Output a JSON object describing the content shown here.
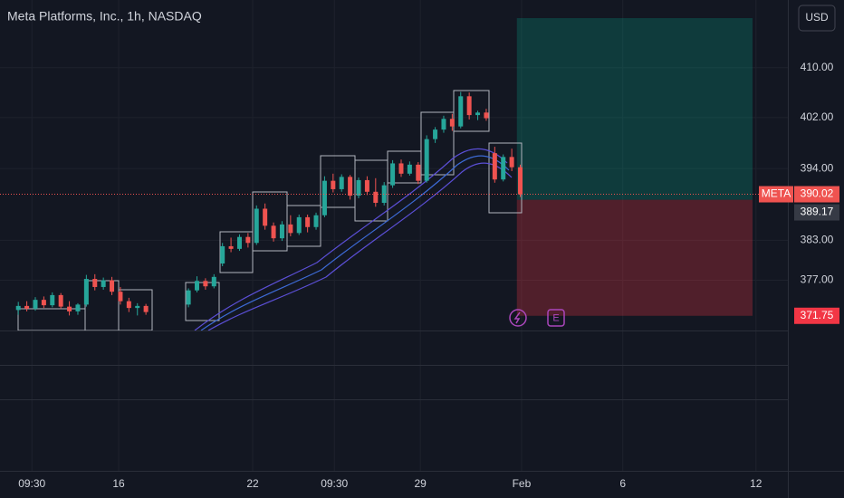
{
  "chart_data": {
    "type": "candlestick",
    "title": "Meta Platforms, Inc., 1h, NASDAQ",
    "currency": "USD",
    "symbol": "META",
    "earnings_marker": "E",
    "log_scale": true,
    "grid": true,
    "up_color": "#26a69a",
    "down_color": "#ef5350",
    "ylim": [
      369.6,
      421.1
    ],
    "yticks": [
      {
        "value": 410,
        "label": "410.00"
      },
      {
        "value": 402,
        "label": "402.00"
      },
      {
        "value": 394,
        "label": "394.00"
      },
      {
        "value": 383,
        "label": "383.00"
      },
      {
        "value": 377,
        "label": "377.00"
      }
    ],
    "xlim": [
      -4.3,
      180.9
    ],
    "xticks": [
      {
        "value": 3.2,
        "label": "09:30"
      },
      {
        "value": 23.6,
        "label": "16"
      },
      {
        "value": 55.1,
        "label": "22"
      },
      {
        "value": 74.3,
        "label": "09:30"
      },
      {
        "value": 94.5,
        "label": "29"
      },
      {
        "value": 118.3,
        "label": "Feb"
      },
      {
        "value": 142.1,
        "label": "6"
      },
      {
        "value": 173.4,
        "label": "12"
      }
    ],
    "candles": [
      [
        0,
        372.6,
        373.8,
        371.9,
        373.2
      ],
      [
        2,
        373.2,
        373.9,
        372.4,
        372.8
      ],
      [
        4,
        372.8,
        374.5,
        372.5,
        374.1
      ],
      [
        6,
        374.1,
        374.6,
        372.9,
        373.3
      ],
      [
        8,
        373.3,
        375.2,
        373,
        374.8
      ],
      [
        10,
        374.8,
        375.1,
        372.8,
        373.1
      ],
      [
        12,
        373.1,
        373.9,
        371.8,
        372.4
      ],
      [
        14,
        372.4,
        373.6,
        371.9,
        373.4
      ],
      [
        16,
        373.4,
        377.8,
        373.1,
        377.2
      ],
      [
        18,
        377.2,
        377.9,
        375.5,
        376
      ],
      [
        20,
        376,
        377.4,
        375.6,
        377
      ],
      [
        22,
        377,
        377.5,
        374.8,
        375.3
      ],
      [
        24,
        375.3,
        376,
        373.4,
        373.9
      ],
      [
        26,
        373.9,
        374.4,
        372.3,
        372.9
      ],
      [
        28,
        372.9,
        373.6,
        371.8,
        373.2
      ],
      [
        30,
        373.2,
        373.5,
        371.9,
        372.3
      ],
      [
        40,
        373.4,
        375.8,
        373,
        375.5
      ],
      [
        42,
        375.5,
        377.6,
        375.2,
        376.9
      ],
      [
        44,
        376.9,
        377.3,
        375.6,
        376.1
      ],
      [
        46,
        376.1,
        377.9,
        375.8,
        377.5
      ],
      [
        48,
        379.5,
        382.6,
        379.1,
        382.1
      ],
      [
        50,
        382.1,
        383.4,
        381.2,
        381.7
      ],
      [
        52,
        381.7,
        383.9,
        381.4,
        383.5
      ],
      [
        54,
        383.5,
        384.1,
        381.9,
        382.6
      ],
      [
        56,
        382.6,
        388.3,
        382.3,
        387.8
      ],
      [
        58,
        387.8,
        388.6,
        384.6,
        385.2
      ],
      [
        60,
        385.2,
        385.7,
        382.8,
        383.3
      ],
      [
        62,
        383.3,
        385.9,
        382.9,
        385.4
      ],
      [
        64,
        385.4,
        386.8,
        383.6,
        384.1
      ],
      [
        66,
        384.1,
        386.9,
        383.8,
        386.5
      ],
      [
        68,
        386.5,
        386.9,
        384.2,
        385
      ],
      [
        70,
        385,
        387.2,
        384.6,
        386.8
      ],
      [
        72,
        386.8,
        392.8,
        386.5,
        392.1
      ],
      [
        74,
        392.1,
        393.2,
        390.3,
        390.8
      ],
      [
        76,
        390.8,
        393.1,
        390.4,
        392.7
      ],
      [
        78,
        392.7,
        393,
        389.2,
        389.8
      ],
      [
        80,
        389.8,
        392.6,
        389.4,
        392.2
      ],
      [
        82,
        392.2,
        392.8,
        389.9,
        390.4
      ],
      [
        84,
        390.4,
        392.5,
        388.1,
        388.7
      ],
      [
        86,
        388.7,
        391.9,
        388.3,
        391.4
      ],
      [
        88,
        391.4,
        395.3,
        391,
        394.8
      ],
      [
        90,
        394.8,
        395.4,
        392.7,
        393.2
      ],
      [
        92,
        393.2,
        395.1,
        392.9,
        394.6
      ],
      [
        94,
        394.6,
        395,
        391.6,
        392.1
      ],
      [
        96,
        392.1,
        399.2,
        391.8,
        398.6
      ],
      [
        98,
        398.6,
        400.5,
        398,
        400.1
      ],
      [
        100,
        400.1,
        402.3,
        399.6,
        401.8
      ],
      [
        102,
        401.8,
        402.6,
        399.9,
        400.6
      ],
      [
        104,
        400.6,
        406.1,
        400.3,
        405.4
      ],
      [
        106,
        405.4,
        406,
        401.7,
        402.4
      ],
      [
        108,
        402.4,
        403.1,
        401.6,
        402.8
      ],
      [
        110,
        402.8,
        403.4,
        401.5,
        401.9
      ],
      [
        112,
        396.4,
        397.4,
        391.8,
        392.3
      ],
      [
        114,
        392.3,
        396.2,
        392,
        395.8
      ],
      [
        116,
        395.8,
        397.1,
        393.6,
        394.2
      ],
      [
        118,
        394.2,
        394.6,
        389.6,
        390.02
      ]
    ],
    "last_price": 390.02,
    "position": {
      "x": [
        117.2,
        172.6
      ],
      "entry": 389.17,
      "stop": 371.75,
      "target": 418.1
    }
  }
}
